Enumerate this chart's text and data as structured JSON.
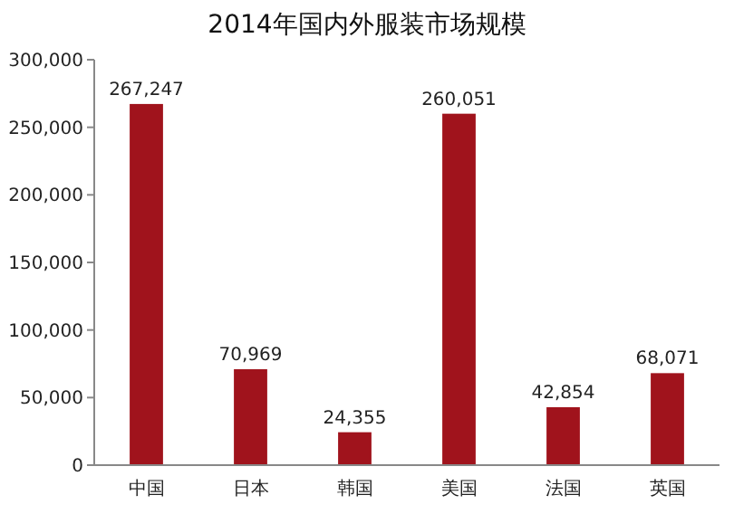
{
  "chart_data": {
    "type": "bar",
    "title": "2014年国内外服装市场规模",
    "categories": [
      "中国",
      "日本",
      "韩国",
      "美国",
      "法国",
      "英国"
    ],
    "values": [
      267247,
      70969,
      24355,
      260051,
      42854,
      68071
    ],
    "color": "#a0131c",
    "value_labels": [
      "267,247",
      "70,969",
      "24,355",
      "260,051",
      "42,854",
      "68,071"
    ],
    "ylim": [
      0,
      300000
    ],
    "yticks": [
      {
        "value": 0,
        "label": "0"
      },
      {
        "value": 50000,
        "label": "50,000"
      },
      {
        "value": 100000,
        "label": "100,000"
      },
      {
        "value": 150000,
        "label": "150,000"
      },
      {
        "value": 200000,
        "label": "200,000"
      },
      {
        "value": 250000,
        "label": "250,000"
      },
      {
        "value": 300000,
        "label": "300,000"
      }
    ],
    "grid": false
  }
}
